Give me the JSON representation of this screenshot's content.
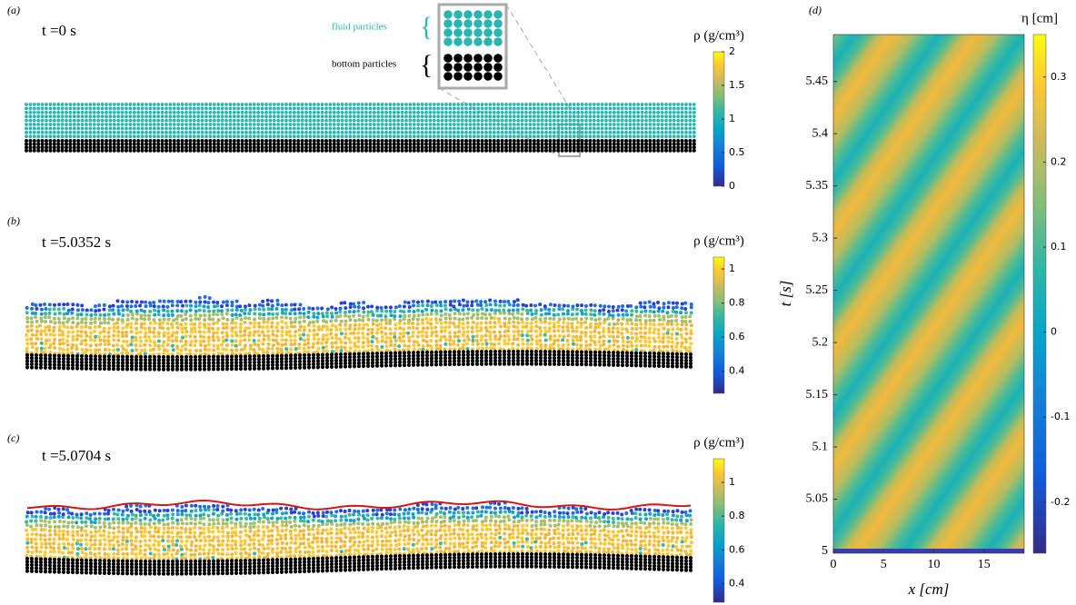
{
  "figure": {
    "panels": [
      {
        "label": "(a)",
        "time": "t =0 s",
        "inset": {
          "fluid": "fluid particles",
          "bottom": "bottom particles"
        },
        "colorbar": {
          "label": "ρ (g/cm³)",
          "lim": [
            0,
            2
          ],
          "ticks": [
            0,
            0.5,
            1,
            1.5,
            2
          ]
        }
      },
      {
        "label": "(b)",
        "time": "t =5.0352 s",
        "colorbar": {
          "label": "ρ (g/cm³)",
          "lim": [
            0.27,
            1.07
          ],
          "ticks": [
            0.4,
            0.6,
            0.8,
            1
          ]
        }
      },
      {
        "label": "(c)",
        "time": "t =5.0704 s",
        "colorbar": {
          "label": "ρ (g/cm³)",
          "lim": [
            0.29,
            1.14
          ],
          "ticks": [
            0.4,
            0.6,
            0.8,
            1
          ]
        }
      },
      {
        "label": "(d)",
        "xlabel": "x [cm]",
        "ylabel": "t [s]",
        "xlim": [
          0,
          19
        ],
        "ylim": [
          5,
          5.495
        ],
        "xticks": [
          0,
          5,
          10,
          15
        ],
        "yticks": [
          5,
          5.05,
          5.1,
          5.15,
          5.2,
          5.25,
          5.3,
          5.35,
          5.4,
          5.45
        ],
        "colorbar": {
          "label": "η [cm]",
          "lim": [
            -0.26,
            0.35
          ],
          "ticks": [
            -0.2,
            -0.1,
            0,
            0.1,
            0.2,
            0.3
          ]
        }
      }
    ]
  }
}
